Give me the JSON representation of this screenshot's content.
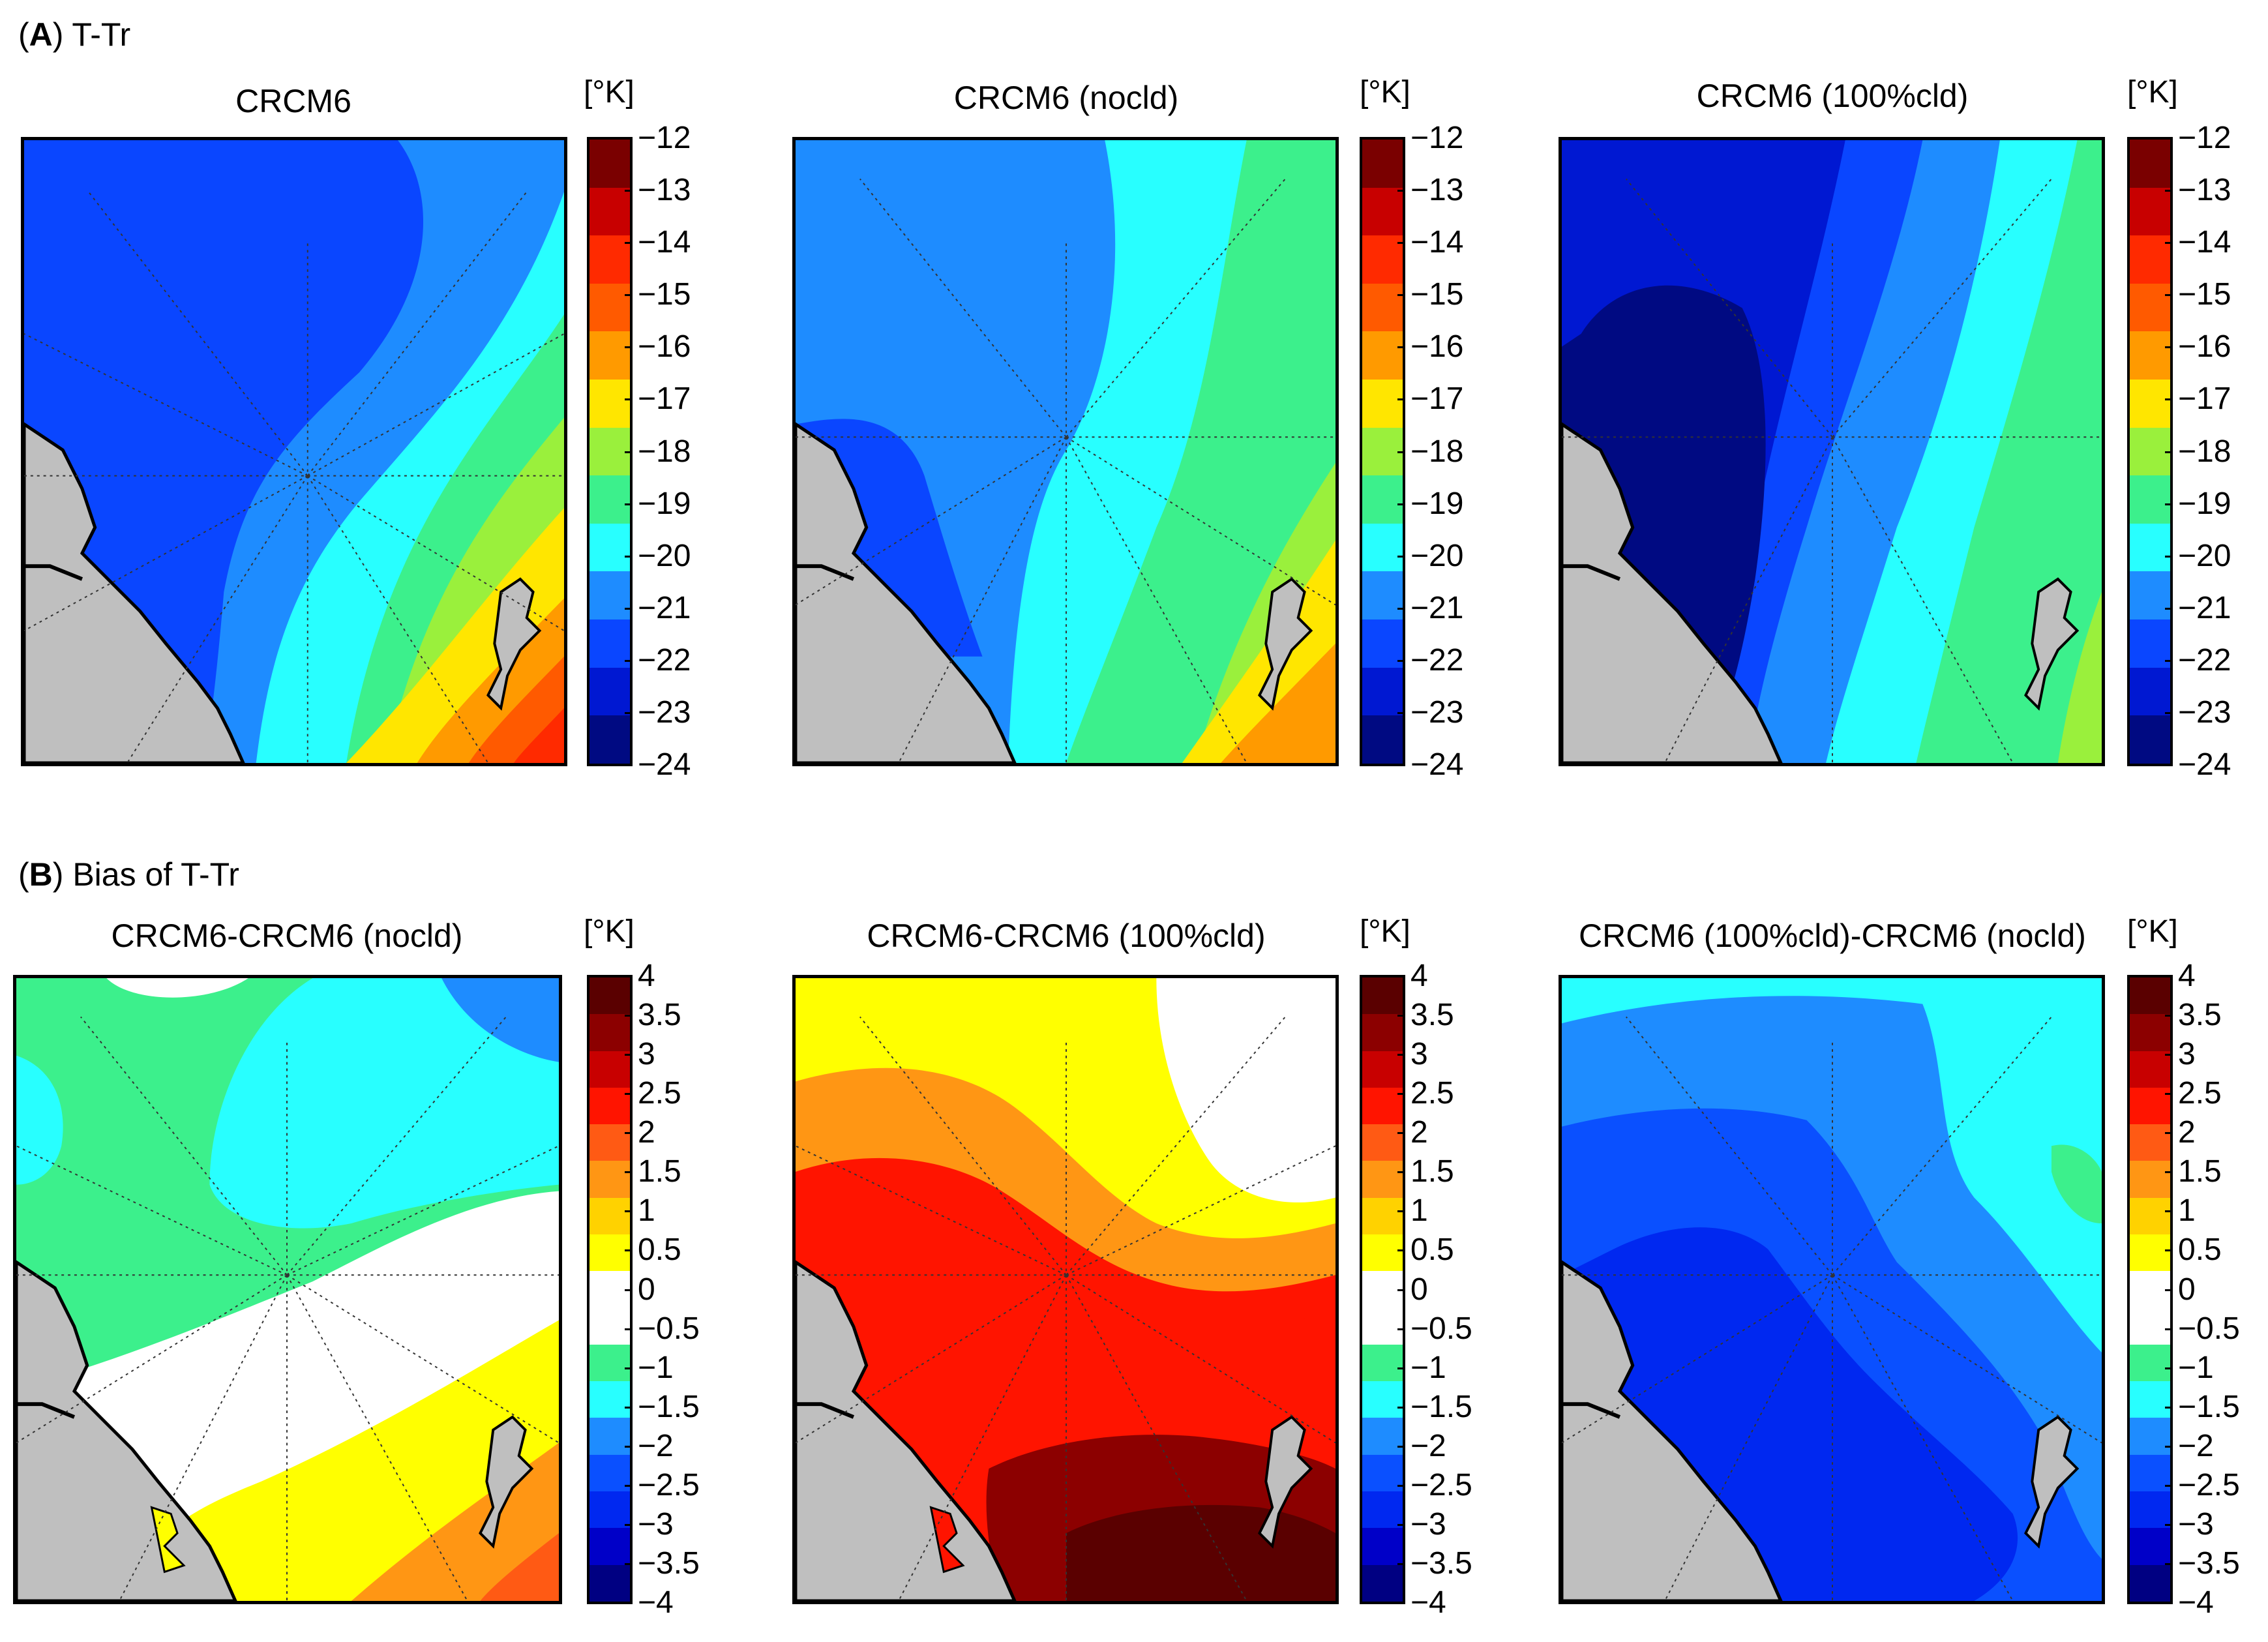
{
  "sections": [
    {
      "bold": "A",
      "label": "T-Tr"
    },
    {
      "bold": "B",
      "label": "Bias of T-Tr"
    }
  ],
  "unit": "[°K]",
  "row_a": {
    "ticks": [
      "−12",
      "−13",
      "−14",
      "−15",
      "−16",
      "−17",
      "−18",
      "−19",
      "−20",
      "−21",
      "−22",
      "−23",
      "−24"
    ],
    "colors": [
      "#7a0000",
      "#c80000",
      "#ff2a00",
      "#ff5a00",
      "#ff9a00",
      "#ffe600",
      "#9af03c",
      "#3cf08c",
      "#28ffff",
      "#1e8cff",
      "#0a46ff",
      "#0018d2",
      "#000a82"
    ],
    "panels": [
      {
        "title": "CRCM6"
      },
      {
        "title": "CRCM6 (nocld)"
      },
      {
        "title": "CRCM6 (100%cld)"
      }
    ]
  },
  "row_b": {
    "ticks": [
      "4",
      "3.5",
      "3",
      "2.5",
      "2",
      "1.5",
      "1",
      "0.5",
      "0",
      "−0.5",
      "−1",
      "−1.5",
      "−2",
      "−2.5",
      "−3",
      "−3.5",
      "−4"
    ],
    "colors": [
      "#5a0000",
      "#8c0000",
      "#c80000",
      "#ff1400",
      "#ff5a14",
      "#ff9614",
      "#ffd200",
      "#ffff00",
      "#ffffff",
      "#ffffff",
      "#3cf08c",
      "#28ffff",
      "#1e8cff",
      "#0a50ff",
      "#0028f0",
      "#0000c8",
      "#000082"
    ],
    "panels": [
      {
        "title": "CRCM6-CRCM6 (nocld)"
      },
      {
        "title": "CRCM6-CRCM6 (100%cld)"
      },
      {
        "title": "CRCM6 (100%cld)-CRCM6 (nocld)"
      }
    ]
  }
}
